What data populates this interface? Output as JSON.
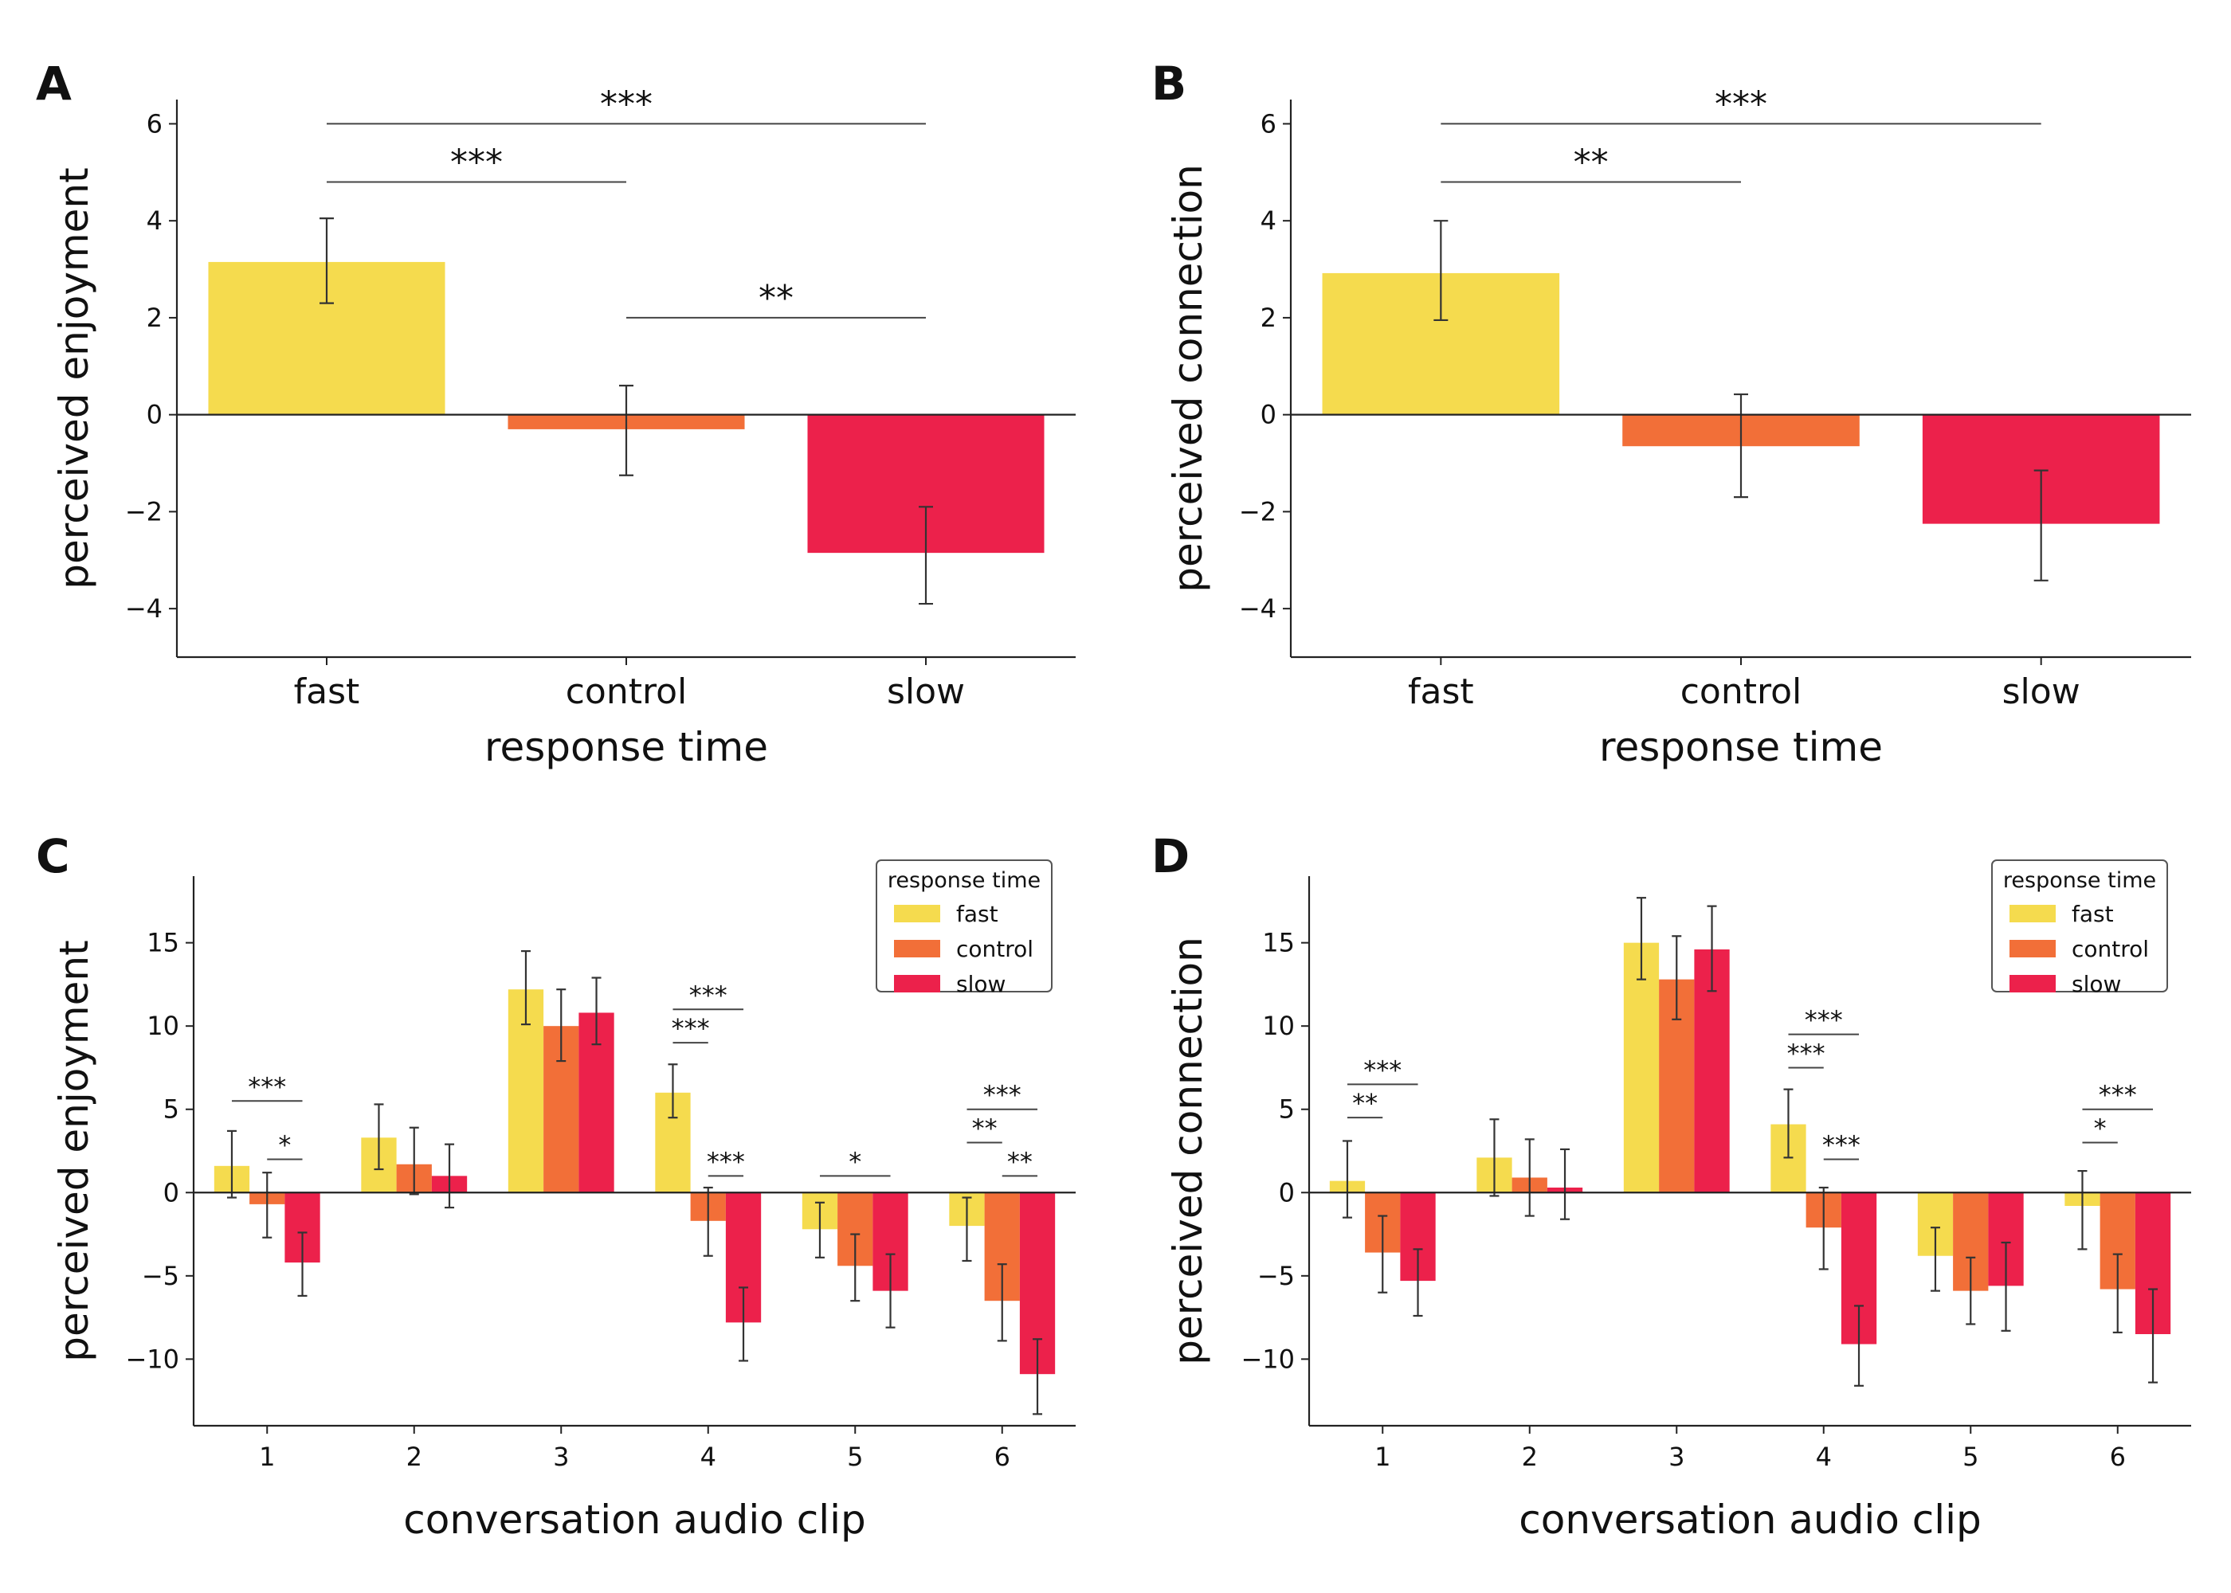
{
  "colors": {
    "fast": "#F5DB4E",
    "control": "#F26F38",
    "slow": "#EC214B",
    "axis": "#222222",
    "annotation": "#444444"
  },
  "chart_data": [
    {
      "panel_label": "A",
      "type": "bar",
      "xlabel": "response time",
      "ylabel": "perceived enjoyment",
      "ylim": [
        -5,
        6.5
      ],
      "yticks": [
        -4,
        -2,
        0,
        2,
        4,
        6
      ],
      "categories": [
        "fast",
        "control",
        "slow"
      ],
      "values": [
        3.15,
        -0.3,
        -2.85
      ],
      "errors": [
        [
          2.3,
          4.05
        ],
        [
          -1.25,
          0.6
        ],
        [
          -3.9,
          -1.9
        ]
      ],
      "significance": [
        {
          "from": 0,
          "to": 2,
          "y": 6.0,
          "label": "***"
        },
        {
          "from": 0,
          "to": 1,
          "y": 4.8,
          "label": "***"
        },
        {
          "from": 1,
          "to": 2,
          "y": 2.0,
          "label": "**"
        }
      ]
    },
    {
      "panel_label": "B",
      "type": "bar",
      "xlabel": "response time",
      "ylabel": "perceived connection",
      "ylim": [
        -5,
        6.5
      ],
      "yticks": [
        -4,
        -2,
        0,
        2,
        4,
        6
      ],
      "categories": [
        "fast",
        "control",
        "slow"
      ],
      "values": [
        2.92,
        -0.65,
        -2.25
      ],
      "errors": [
        [
          1.95,
          4.0
        ],
        [
          -1.7,
          0.42
        ],
        [
          -3.42,
          -1.15
        ]
      ],
      "significance": [
        {
          "from": 0,
          "to": 2,
          "y": 6.0,
          "label": "***"
        },
        {
          "from": 0,
          "to": 1,
          "y": 4.8,
          "label": "**"
        }
      ]
    },
    {
      "panel_label": "C",
      "type": "bar",
      "xlabel": "conversation audio clip",
      "ylabel": "perceived enjoyment",
      "ylim": [
        -14,
        19
      ],
      "yticks": [
        -10,
        -5,
        0,
        5,
        10,
        15
      ],
      "categories": [
        "1",
        "2",
        "3",
        "4",
        "5",
        "6"
      ],
      "legend_title": "response time",
      "legend_position": "top-right",
      "series": [
        {
          "name": "fast",
          "values": [
            1.6,
            3.3,
            12.2,
            6.0,
            -2.2,
            -2.0
          ],
          "errors": [
            [
              -0.3,
              3.7
            ],
            [
              1.4,
              5.3
            ],
            [
              10.1,
              14.5
            ],
            [
              4.5,
              7.7
            ],
            [
              -3.9,
              -0.6
            ],
            [
              -4.1,
              -0.3
            ]
          ]
        },
        {
          "name": "control",
          "values": [
            -0.7,
            1.7,
            10.0,
            -1.7,
            -4.4,
            -6.5
          ],
          "errors": [
            [
              -2.7,
              1.2
            ],
            [
              -0.1,
              3.9
            ],
            [
              7.9,
              12.2
            ],
            [
              -3.8,
              0.3
            ],
            [
              -6.5,
              -2.5
            ],
            [
              -8.9,
              -4.3
            ]
          ]
        },
        {
          "name": "slow",
          "values": [
            -4.2,
            1.0,
            10.8,
            -7.8,
            -5.9,
            -10.9
          ],
          "errors": [
            [
              -6.2,
              -2.4
            ],
            [
              -0.9,
              2.9
            ],
            [
              8.9,
              12.9
            ],
            [
              -10.1,
              -5.7
            ],
            [
              -8.1,
              -3.7
            ],
            [
              -13.3,
              -8.8
            ]
          ]
        }
      ],
      "significance": [
        {
          "clip": 0,
          "from": 0,
          "to": 2,
          "y": 5.5,
          "label": "***"
        },
        {
          "clip": 0,
          "from": 1,
          "to": 2,
          "y": 2.0,
          "label": "*"
        },
        {
          "clip": 3,
          "from": 0,
          "to": 2,
          "y": 11.0,
          "label": "***"
        },
        {
          "clip": 3,
          "from": 0,
          "to": 1,
          "y": 9.0,
          "label": "***"
        },
        {
          "clip": 3,
          "from": 1,
          "to": 2,
          "y": 1.0,
          "label": "***"
        },
        {
          "clip": 4,
          "from": 0,
          "to": 2,
          "y": 1.0,
          "label": "*"
        },
        {
          "clip": 5,
          "from": 0,
          "to": 2,
          "y": 5.0,
          "label": "***"
        },
        {
          "clip": 5,
          "from": 0,
          "to": 1,
          "y": 3.0,
          "label": "**"
        },
        {
          "clip": 5,
          "from": 1,
          "to": 2,
          "y": 1.0,
          "label": "**"
        }
      ]
    },
    {
      "panel_label": "D",
      "type": "bar",
      "xlabel": "conversation audio clip",
      "ylabel": "perceived connection",
      "ylim": [
        -14,
        19
      ],
      "yticks": [
        -10,
        -5,
        0,
        5,
        10,
        15
      ],
      "categories": [
        "1",
        "2",
        "3",
        "4",
        "5",
        "6"
      ],
      "legend_title": "response time",
      "legend_position": "top-right",
      "series": [
        {
          "name": "fast",
          "values": [
            0.7,
            2.1,
            15.0,
            4.1,
            -3.8,
            -0.8
          ],
          "errors": [
            [
              -1.5,
              3.1
            ],
            [
              -0.2,
              4.4
            ],
            [
              12.8,
              17.7
            ],
            [
              2.1,
              6.2
            ],
            [
              -5.9,
              -2.1
            ],
            [
              -3.4,
              1.3
            ]
          ]
        },
        {
          "name": "control",
          "values": [
            -3.6,
            0.9,
            12.8,
            -2.1,
            -5.9,
            -5.8
          ],
          "errors": [
            [
              -6.0,
              -1.4
            ],
            [
              -1.4,
              3.2
            ],
            [
              10.4,
              15.4
            ],
            [
              -4.6,
              0.3
            ],
            [
              -7.9,
              -3.9
            ],
            [
              -8.4,
              -3.7
            ]
          ]
        },
        {
          "name": "slow",
          "values": [
            -5.3,
            0.3,
            14.6,
            -9.1,
            -5.6,
            -8.5
          ],
          "errors": [
            [
              -7.4,
              -3.4
            ],
            [
              -1.6,
              2.6
            ],
            [
              12.1,
              17.2
            ],
            [
              -11.6,
              -6.8
            ],
            [
              -8.3,
              -3.0
            ],
            [
              -11.4,
              -5.8
            ]
          ]
        }
      ],
      "significance": [
        {
          "clip": 0,
          "from": 0,
          "to": 2,
          "y": 6.5,
          "label": "***"
        },
        {
          "clip": 0,
          "from": 0,
          "to": 1,
          "y": 4.5,
          "label": "**"
        },
        {
          "clip": 3,
          "from": 0,
          "to": 2,
          "y": 9.5,
          "label": "***"
        },
        {
          "clip": 3,
          "from": 0,
          "to": 1,
          "y": 7.5,
          "label": "***"
        },
        {
          "clip": 3,
          "from": 1,
          "to": 2,
          "y": 2.0,
          "label": "***"
        },
        {
          "clip": 5,
          "from": 0,
          "to": 2,
          "y": 5.0,
          "label": "***"
        },
        {
          "clip": 5,
          "from": 0,
          "to": 1,
          "y": 3.0,
          "label": "*"
        }
      ]
    }
  ]
}
